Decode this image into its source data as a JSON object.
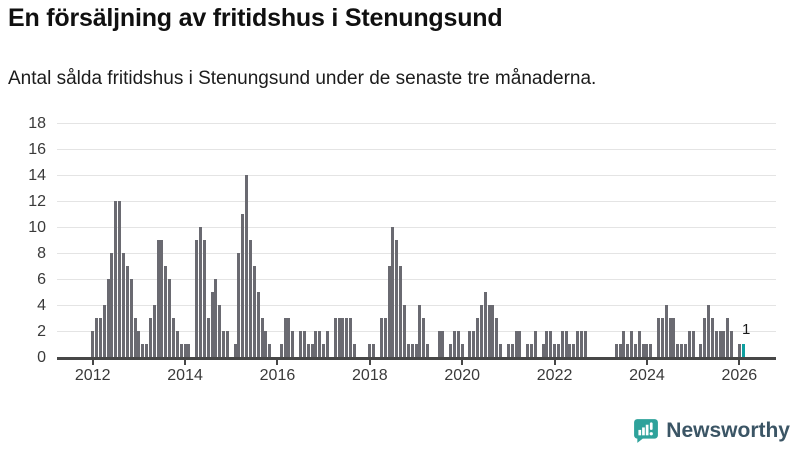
{
  "header": {
    "title": "En försäljning av fritidshus i Stenungsund",
    "subtitle": "Antal sålda fritidshus i Stenungsund under de senaste tre månaderna."
  },
  "chart_data": {
    "type": "bar",
    "title": "En försäljning av fritidshus i Stenungsund",
    "x_start": "2012-01",
    "frequency": "monthly",
    "ylim": [
      0,
      18
    ],
    "y_ticks": [
      0,
      2,
      4,
      6,
      8,
      10,
      12,
      14,
      16,
      18
    ],
    "x_tick_labels": [
      "2012",
      "2014",
      "2016",
      "2018",
      "2020",
      "2022",
      "2024",
      "2026"
    ],
    "grid": "horizontal",
    "bar_color": "#6a6a71",
    "highlight_color": "#0d9fa0",
    "highlight_last_bar": true,
    "last_value_label": "1",
    "values": [
      2,
      3,
      3,
      4,
      6,
      8,
      12,
      12,
      8,
      7,
      6,
      3,
      2,
      1,
      1,
      3,
      4,
      9,
      9,
      7,
      6,
      3,
      2,
      1,
      1,
      1,
      0,
      9,
      10,
      9,
      3,
      5,
      6,
      4,
      2,
      2,
      0,
      1,
      8,
      11,
      14,
      9,
      7,
      5,
      3,
      2,
      1,
      0,
      0,
      1,
      3,
      3,
      2,
      0,
      2,
      2,
      1,
      1,
      2,
      2,
      1,
      2,
      0,
      3,
      3,
      3,
      3,
      3,
      1,
      0,
      0,
      0,
      1,
      1,
      0,
      3,
      3,
      7,
      10,
      9,
      7,
      4,
      1,
      1,
      1,
      4,
      3,
      1,
      0,
      0,
      2,
      2,
      0,
      1,
      2,
      2,
      1,
      0,
      2,
      2,
      3,
      4,
      5,
      4,
      4,
      3,
      1,
      0,
      1,
      1,
      2,
      2,
      0,
      1,
      1,
      2,
      0,
      1,
      2,
      2,
      1,
      1,
      2,
      2,
      1,
      1,
      2,
      2,
      2,
      0,
      0,
      0,
      0,
      0,
      0,
      0,
      1,
      1,
      2,
      1,
      2,
      1,
      2,
      1,
      1,
      1,
      0,
      3,
      3,
      4,
      3,
      3,
      1,
      1,
      1,
      2,
      2,
      0,
      1,
      3,
      4,
      3,
      2,
      2,
      2,
      3,
      2,
      0,
      1,
      1
    ]
  },
  "footer": {
    "brand": "Newsworthy",
    "logo_icon": "newsworthy-speech-bubble-chart-icon"
  }
}
